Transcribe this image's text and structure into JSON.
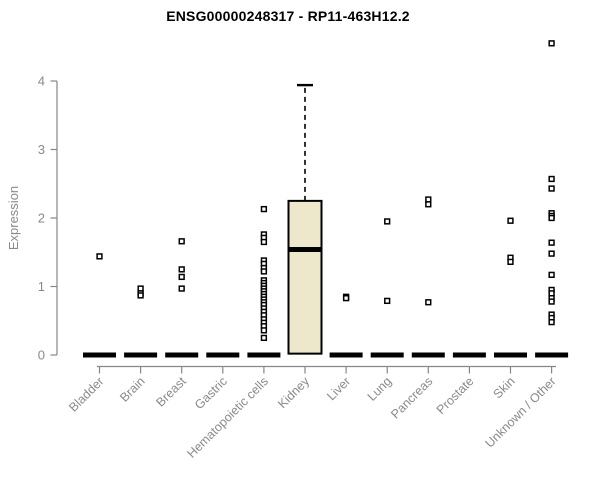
{
  "chart_data": {
    "type": "boxplot",
    "title": "ENSG00000248317 - RP11-463H12.2",
    "ylabel": "Expression",
    "xlabel": "",
    "ylim": [
      0,
      4.6
    ],
    "yticks": [
      0,
      1,
      2,
      3,
      4
    ],
    "grid": false,
    "legend": "none",
    "categories": [
      "Bladder",
      "Brain",
      "Breast",
      "Gastric",
      "Hematopoietic cells",
      "Kidney",
      "Liver",
      "Lung",
      "Pancreas",
      "Prostate",
      "Skin",
      "Unknown / Other"
    ],
    "boxes": [
      {
        "category": "Bladder",
        "q1": 0,
        "median": 0,
        "q3": 0,
        "whisker_low": 0,
        "whisker_high": 0,
        "outliers": [
          1.44
        ]
      },
      {
        "category": "Brain",
        "q1": 0,
        "median": 0,
        "q3": 0,
        "whisker_low": 0,
        "whisker_high": 0,
        "outliers": [
          0.97,
          0.9,
          0.87
        ]
      },
      {
        "category": "Breast",
        "q1": 0,
        "median": 0,
        "q3": 0,
        "whisker_low": 0,
        "whisker_high": 0,
        "outliers": [
          1.66,
          1.25,
          1.14,
          0.97
        ]
      },
      {
        "category": "Gastric",
        "q1": 0,
        "median": 0,
        "q3": 0,
        "whisker_low": 0,
        "whisker_high": 0,
        "outliers": []
      },
      {
        "category": "Hematopoietic cells",
        "q1": 0,
        "median": 0,
        "q3": 0,
        "whisker_low": 0,
        "whisker_high": 0,
        "outliers": [
          2.13,
          1.76,
          1.71,
          1.65,
          1.38,
          1.33,
          1.27,
          1.22,
          1.09,
          1.05,
          1.01,
          0.97,
          0.93,
          0.89,
          0.85,
          0.81,
          0.77,
          0.73,
          0.68,
          0.63,
          0.58,
          0.52,
          0.47,
          0.42,
          0.36,
          0.25
        ]
      },
      {
        "category": "Kidney",
        "q1": 0.02,
        "median": 1.54,
        "q3": 2.25,
        "whisker_low": 0.02,
        "whisker_high": 3.94,
        "outliers": []
      },
      {
        "category": "Liver",
        "q1": 0,
        "median": 0,
        "q3": 0,
        "whisker_low": 0,
        "whisker_high": 0,
        "outliers": [
          0.85,
          0.83
        ]
      },
      {
        "category": "Lung",
        "q1": 0,
        "median": 0,
        "q3": 0,
        "whisker_low": 0,
        "whisker_high": 0,
        "outliers": [
          1.95,
          0.79
        ]
      },
      {
        "category": "Pancreas",
        "q1": 0,
        "median": 0,
        "q3": 0,
        "whisker_low": 0,
        "whisker_high": 0,
        "outliers": [
          2.27,
          2.2,
          0.77
        ]
      },
      {
        "category": "Prostate",
        "q1": 0,
        "median": 0,
        "q3": 0,
        "whisker_low": 0,
        "whisker_high": 0,
        "outliers": []
      },
      {
        "category": "Skin",
        "q1": 0,
        "median": 0,
        "q3": 0,
        "whisker_low": 0,
        "whisker_high": 0,
        "outliers": [
          1.96,
          1.42,
          1.36
        ]
      },
      {
        "category": "Unknown / Other",
        "q1": 0,
        "median": 0,
        "q3": 0,
        "whisker_low": 0,
        "whisker_high": 0,
        "outliers": [
          4.55,
          2.57,
          2.43,
          2.07,
          2.03,
          2.0,
          1.64,
          1.48,
          1.17,
          0.95,
          0.9,
          0.83,
          0.78,
          0.59,
          0.54,
          0.48
        ]
      }
    ],
    "colors": {
      "box_fill": "#EDE7CB",
      "box_stroke": "#000000",
      "median": "#000000",
      "outlier_stroke": "#000000",
      "outlier_fill": "#ffffff",
      "axis": "#878787",
      "tick_label": "#8a8a8a",
      "title": "#000000",
      "background": "#ffffff"
    }
  }
}
